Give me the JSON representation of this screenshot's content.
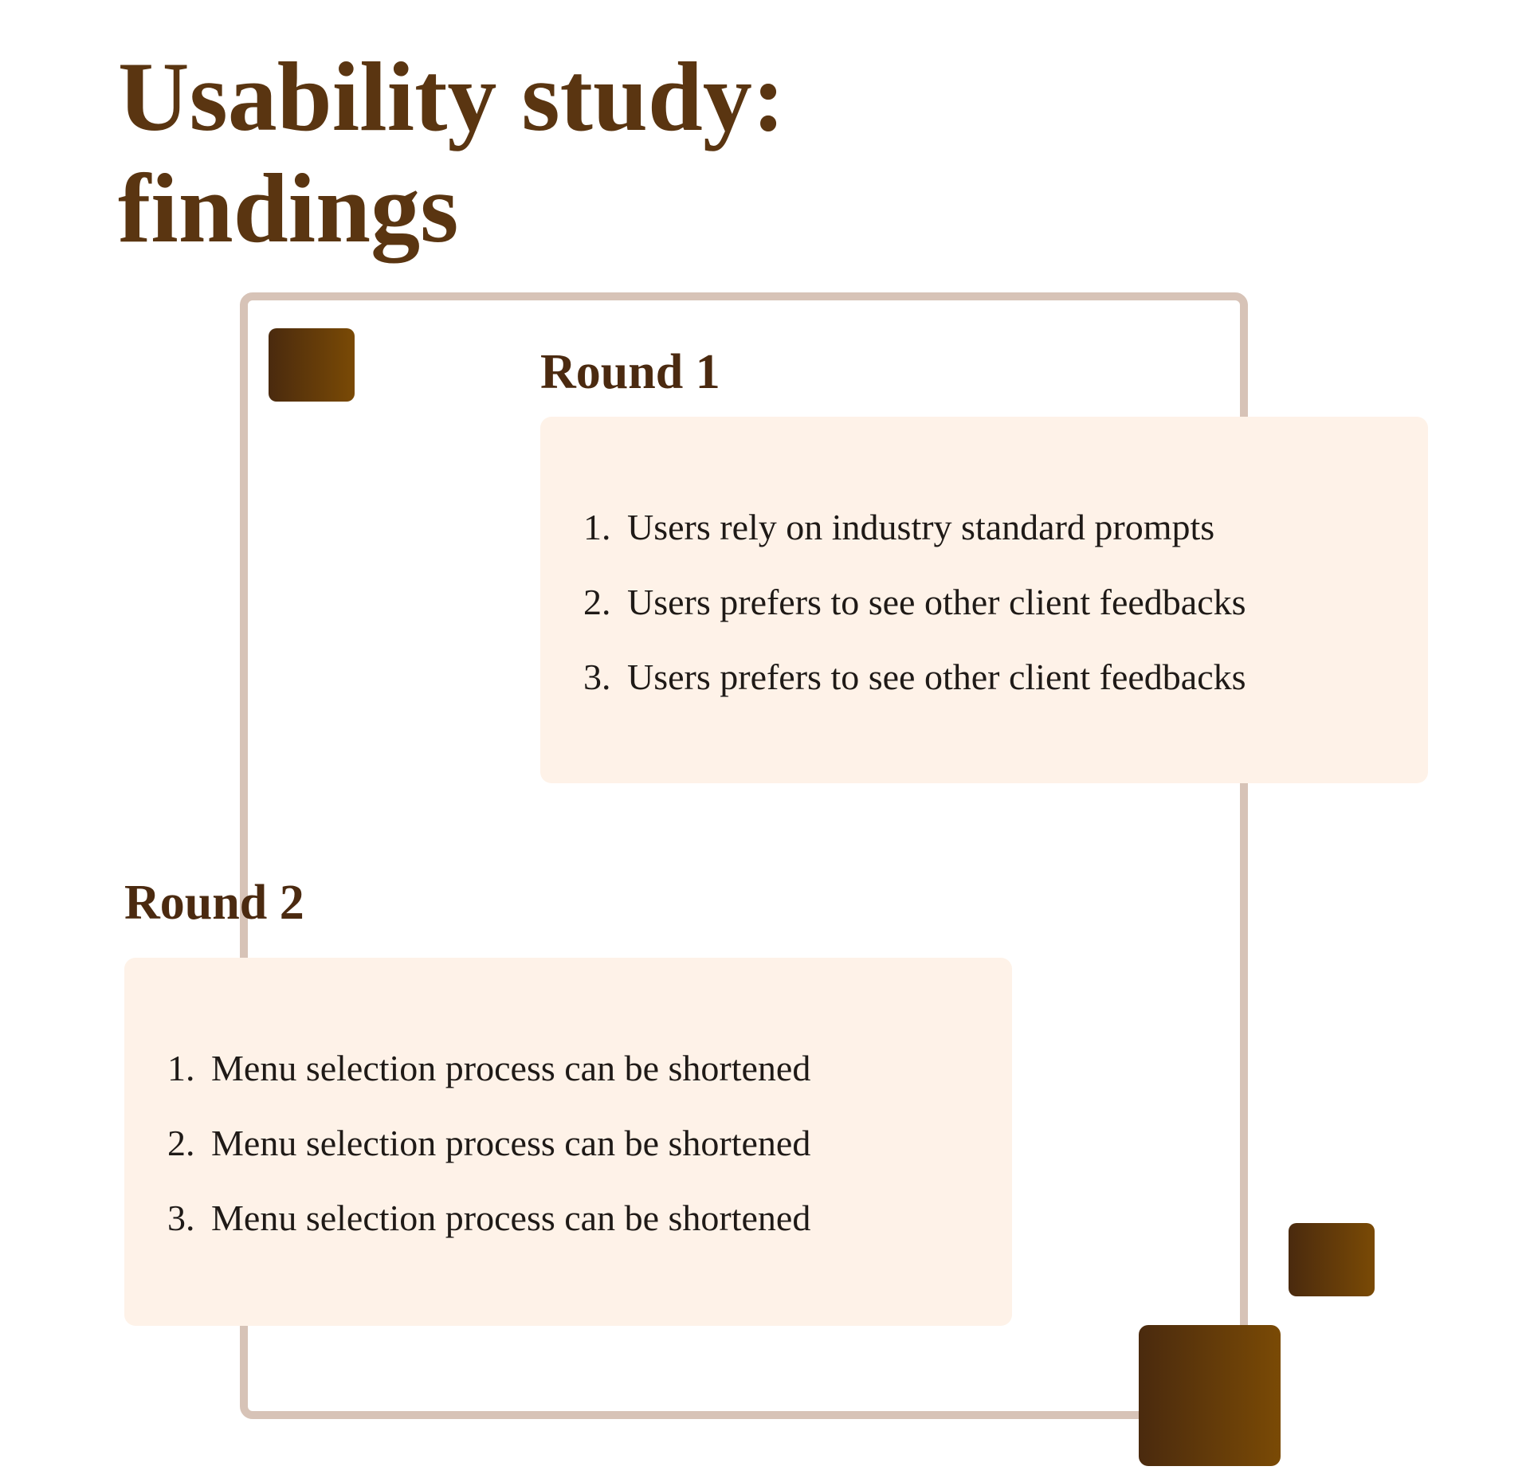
{
  "title": "Usability study:\nfindings",
  "rounds": [
    {
      "heading": "Round 1",
      "items": [
        {
          "number": "1.",
          "text": "Users rely on industry standard prompts"
        },
        {
          "number": "2.",
          "text": "Users prefers to see other client feedbacks"
        },
        {
          "number": "3.",
          "text": "Users prefers to see other client feedbacks"
        }
      ]
    },
    {
      "heading": "Round 2",
      "items": [
        {
          "number": "1.",
          "text": "Menu selection process can be shortened"
        },
        {
          "number": "2.",
          "text": "Menu selection process can be shortened"
        },
        {
          "number": "3.",
          "text": "Menu selection process can be shortened"
        }
      ]
    }
  ],
  "colors": {
    "title": "#5a3511",
    "heading": "#4b2a10",
    "card_background": "#fef2e8",
    "frame_border": "#d7c3b7",
    "accent_gradient_start": "#4a2a0e",
    "accent_gradient_end": "#7a4a05"
  }
}
